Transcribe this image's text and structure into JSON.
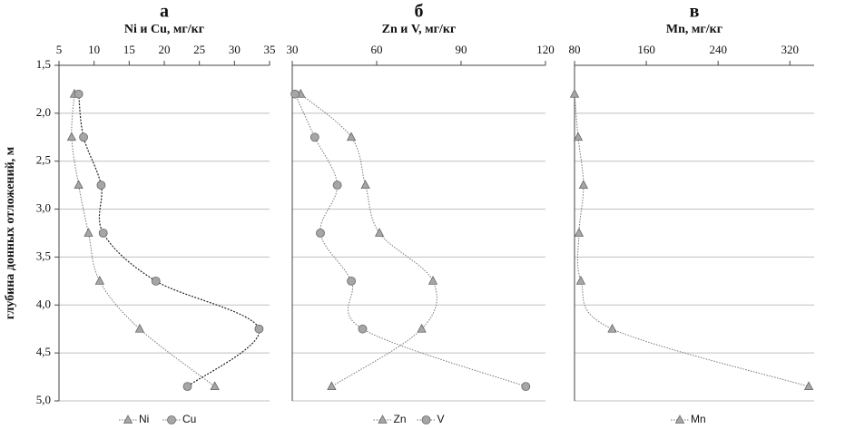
{
  "chart_data": [
    {
      "type": "profile",
      "letter": "а",
      "title": "Ni и Cu, мг/кг",
      "ylabel": "глубина донных отложений, м",
      "xlim": [
        5,
        35
      ],
      "xticks": [
        5,
        10,
        15,
        20,
        25,
        30,
        35
      ],
      "ylim": [
        1.5,
        5.0
      ],
      "y_inverted": true,
      "grid": true,
      "yticks": [
        {
          "value": 1.5,
          "label": "1,5"
        },
        {
          "value": 2.0,
          "label": "2,0"
        },
        {
          "value": 2.5,
          "label": "2,5"
        },
        {
          "value": 3.0,
          "label": "3,0"
        },
        {
          "value": 3.5,
          "label": "3,5"
        },
        {
          "value": 4.0,
          "label": "4,0"
        },
        {
          "value": 4.5,
          "label": "4,5"
        },
        {
          "value": 5.0,
          "label": "5,0"
        }
      ],
      "depth": [
        1.8,
        2.25,
        2.75,
        3.25,
        3.75,
        4.25,
        4.85
      ],
      "series": [
        {
          "name": "Ni",
          "marker": "triangle",
          "color": "#a6a6a6",
          "line": "dotted",
          "values": [
            7.2,
            6.8,
            7.8,
            9.2,
            10.8,
            16.5,
            27.2
          ]
        },
        {
          "name": "Cu",
          "marker": "circle",
          "color": "#a6a6a6",
          "line": "dashed",
          "values": [
            7.8,
            8.5,
            11,
            11.3,
            18.8,
            33.5,
            23.3
          ]
        }
      ]
    },
    {
      "type": "profile",
      "letter": "б",
      "title": "Zn и V, мг/кг",
      "xlim": [
        30,
        120
      ],
      "xticks": [
        30,
        60,
        90,
        120
      ],
      "ylim": [
        1.5,
        5.0
      ],
      "y_inverted": true,
      "grid": true,
      "depth": [
        1.8,
        2.25,
        2.75,
        3.25,
        3.75,
        4.25,
        4.85
      ],
      "series": [
        {
          "name": "Zn",
          "marker": "triangle",
          "color": "#a6a6a6",
          "line": "dotted",
          "values": [
            33,
            51,
            56,
            61,
            80,
            76,
            44
          ]
        },
        {
          "name": "V",
          "marker": "circle",
          "color": "#a6a6a6",
          "line": "dotted",
          "values": [
            31,
            38,
            46,
            40,
            51,
            55,
            113
          ]
        }
      ]
    },
    {
      "type": "profile",
      "letter": "в",
      "title": "Mn, мг/кг",
      "xlim": [
        80,
        347
      ],
      "xticks": [
        80,
        160,
        240,
        320
      ],
      "ylim": [
        1.5,
        5.0
      ],
      "y_inverted": true,
      "grid": true,
      "depth": [
        1.8,
        2.25,
        2.75,
        3.25,
        3.75,
        4.25,
        4.85
      ],
      "series": [
        {
          "name": "Mn",
          "marker": "triangle",
          "color": "#a6a6a6",
          "line": "dotted",
          "values": [
            80,
            84,
            90,
            85,
            87,
            122,
            341
          ]
        }
      ]
    }
  ]
}
